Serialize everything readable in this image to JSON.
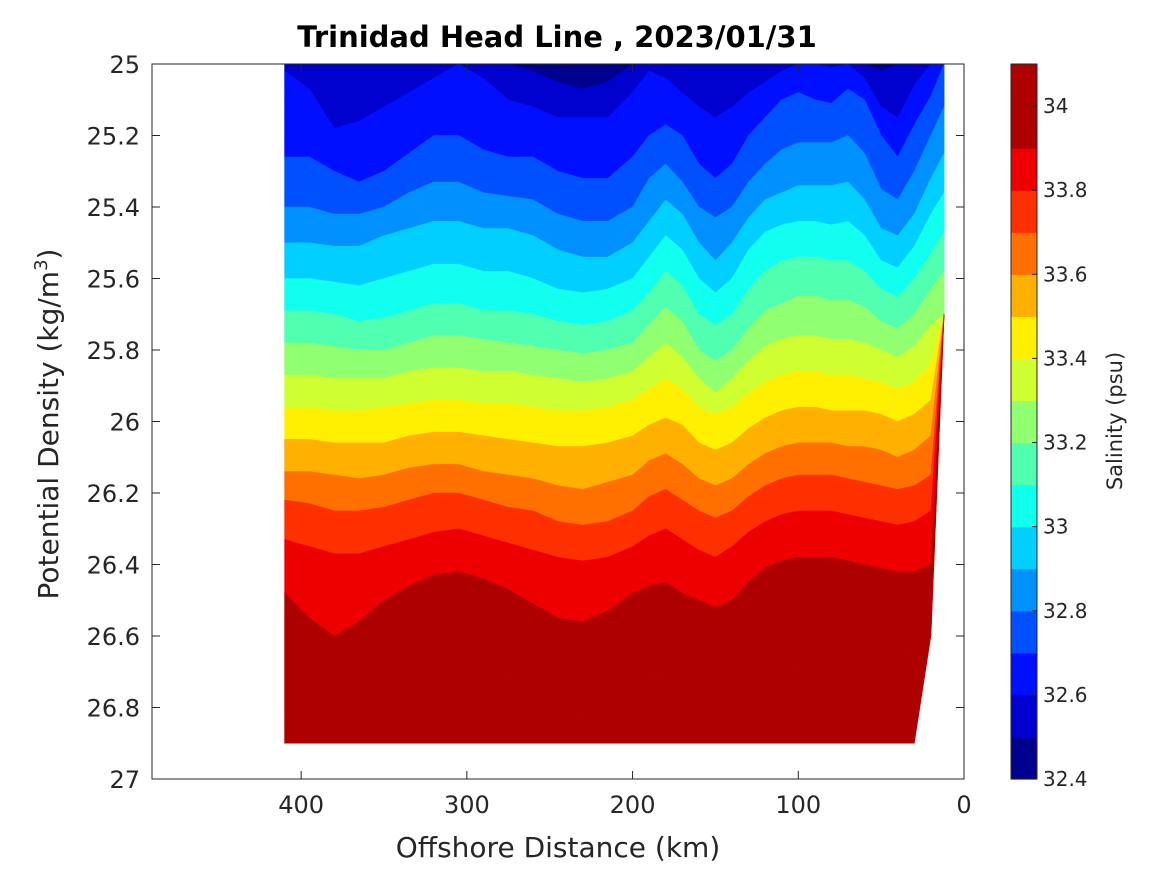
{
  "chart_data": {
    "type": "heatmap",
    "title": "Trinidad Head Line , 2023/01/31",
    "xlabel": "Offshore Distance (km)",
    "ylabel": "Potential Density (kg/m",
    "ylabel_superscript": "3",
    "ylabel_suffix": ")",
    "xlim": [
      490,
      0
    ],
    "ylim": [
      25,
      27
    ],
    "x_direction": "reversed",
    "y_direction": "reversed",
    "xticks": [
      400,
      300,
      200,
      100,
      0
    ],
    "xtick_labels": [
      "400",
      "300",
      "200",
      "100",
      "0"
    ],
    "yticks": [
      25,
      25.2,
      25.4,
      25.6,
      25.8,
      26,
      26.2,
      26.4,
      26.6,
      26.8,
      27
    ],
    "ytick_labels": [
      "25",
      "25.2",
      "25.4",
      "25.6",
      "25.8",
      "26",
      "26.2",
      "26.4",
      "26.6",
      "26.8",
      "27"
    ],
    "grid": false,
    "colorbar": {
      "label": "Salinity (psu)",
      "range": [
        32.4,
        34.1
      ],
      "ticks": [
        32.4,
        32.6,
        32.8,
        33,
        33.2,
        33.4,
        33.6,
        33.8,
        34
      ],
      "tick_labels": [
        "32.4",
        "32.6",
        "32.8",
        "33",
        "33.2",
        "33.4",
        "33.6",
        "33.8",
        "34"
      ],
      "levels": [
        32.4,
        32.5,
        32.6,
        32.7,
        32.8,
        32.9,
        33.0,
        33.1,
        33.2,
        33.3,
        33.4,
        33.5,
        33.6,
        33.7,
        33.8,
        33.9,
        34.0,
        34.1
      ],
      "colors": [
        "#00008f",
        "#0000cf",
        "#0010ff",
        "#0050ff",
        "#0090ff",
        "#00cfff",
        "#10ffef",
        "#50ffaf",
        "#90ff70",
        "#cfff30",
        "#ffef00",
        "#ffb000",
        "#ff7000",
        "#ff3000",
        "#ef0000",
        "#af0000",
        "#af0000"
      ]
    },
    "stations_km": [
      410,
      395,
      380,
      365,
      350,
      335,
      320,
      305,
      290,
      275,
      260,
      245,
      230,
      215,
      200,
      190,
      180,
      170,
      160,
      150,
      140,
      130,
      120,
      110,
      100,
      90,
      80,
      70,
      60,
      50,
      40,
      30,
      20,
      12
    ],
    "data_density_max": [
      26.9,
      26.9,
      26.9,
      26.9,
      26.9,
      26.9,
      26.9,
      26.9,
      26.9,
      26.9,
      26.9,
      26.9,
      26.9,
      26.9,
      26.9,
      26.9,
      26.9,
      26.9,
      26.9,
      26.9,
      26.9,
      26.9,
      26.9,
      26.9,
      26.9,
      26.9,
      26.9,
      26.9,
      26.9,
      26.9,
      26.9,
      26.9,
      26.6,
      25.7
    ],
    "isopycnal_density_of_salinity_levels": {
      "levels": [
        32.5,
        32.6,
        32.7,
        32.8,
        32.9,
        33.0,
        33.1,
        33.2,
        33.3,
        33.4,
        33.5,
        33.6,
        33.7,
        33.8,
        33.9,
        34.0
      ],
      "contours": [
        [
          24.95,
          24.95,
          24.96,
          24.97,
          24.96,
          24.95,
          24.95,
          24.97,
          24.98,
          25.0,
          25.02,
          25.05,
          25.07,
          25.05,
          25.0,
          24.98,
          24.97,
          24.97,
          24.98,
          24.99,
          24.98,
          24.97,
          24.96,
          24.95,
          24.95,
          24.95,
          24.95,
          24.95,
          24.96,
          25.02,
          24.98,
          24.96,
          24.96,
          24.95
        ],
        [
          25.02,
          25.07,
          25.18,
          25.16,
          25.12,
          25.08,
          25.04,
          25.0,
          25.04,
          25.1,
          25.12,
          25.15,
          25.15,
          25.15,
          25.08,
          25.02,
          25.04,
          25.08,
          25.12,
          25.15,
          25.12,
          25.08,
          25.05,
          25.02,
          25.0,
          25.0,
          25.01,
          24.99,
          25.04,
          25.12,
          25.15,
          25.06,
          24.98,
          24.97
        ],
        [
          25.26,
          25.26,
          25.3,
          25.33,
          25.3,
          25.25,
          25.2,
          25.2,
          25.24,
          25.26,
          25.26,
          25.3,
          25.32,
          25.32,
          25.26,
          25.2,
          25.17,
          25.2,
          25.28,
          25.32,
          25.28,
          25.2,
          25.15,
          25.1,
          25.08,
          25.1,
          25.11,
          25.07,
          25.1,
          25.2,
          25.26,
          25.17,
          25.09,
          25.0
        ],
        [
          25.4,
          25.4,
          25.42,
          25.42,
          25.4,
          25.36,
          25.33,
          25.33,
          25.36,
          25.37,
          25.38,
          25.42,
          25.44,
          25.44,
          25.4,
          25.32,
          25.28,
          25.33,
          25.4,
          25.43,
          25.4,
          25.33,
          25.28,
          25.24,
          25.22,
          25.22,
          25.22,
          25.2,
          25.25,
          25.35,
          25.38,
          25.3,
          25.2,
          25.12
        ],
        [
          25.5,
          25.5,
          25.51,
          25.51,
          25.48,
          25.46,
          25.44,
          25.44,
          25.46,
          25.46,
          25.48,
          25.52,
          25.54,
          25.54,
          25.5,
          25.44,
          25.38,
          25.42,
          25.5,
          25.55,
          25.5,
          25.43,
          25.38,
          25.36,
          25.34,
          25.34,
          25.34,
          25.33,
          25.38,
          25.46,
          25.48,
          25.42,
          25.32,
          25.25
        ],
        [
          25.6,
          25.6,
          25.61,
          25.62,
          25.6,
          25.58,
          25.56,
          25.56,
          25.58,
          25.58,
          25.6,
          25.63,
          25.64,
          25.63,
          25.6,
          25.54,
          25.48,
          25.52,
          25.6,
          25.64,
          25.6,
          25.52,
          25.47,
          25.45,
          25.44,
          25.44,
          25.45,
          25.44,
          25.48,
          25.55,
          25.57,
          25.51,
          25.42,
          25.36
        ],
        [
          25.69,
          25.69,
          25.7,
          25.72,
          25.71,
          25.69,
          25.67,
          25.67,
          25.69,
          25.69,
          25.7,
          25.72,
          25.73,
          25.72,
          25.69,
          25.64,
          25.58,
          25.62,
          25.7,
          25.73,
          25.7,
          25.63,
          25.58,
          25.55,
          25.54,
          25.54,
          25.55,
          25.55,
          25.58,
          25.63,
          25.65,
          25.6,
          25.53,
          25.47
        ],
        [
          25.78,
          25.78,
          25.79,
          25.8,
          25.8,
          25.78,
          25.76,
          25.76,
          25.77,
          25.78,
          25.79,
          25.8,
          25.81,
          25.8,
          25.78,
          25.73,
          25.68,
          25.72,
          25.8,
          25.83,
          25.8,
          25.74,
          25.69,
          25.67,
          25.65,
          25.65,
          25.66,
          25.66,
          25.68,
          25.72,
          25.74,
          25.7,
          25.63,
          25.58
        ],
        [
          25.87,
          25.87,
          25.88,
          25.88,
          25.88,
          25.86,
          25.85,
          25.85,
          25.86,
          25.86,
          25.87,
          25.88,
          25.89,
          25.88,
          25.86,
          25.82,
          25.78,
          25.82,
          25.88,
          25.92,
          25.88,
          25.83,
          25.79,
          25.77,
          25.76,
          25.76,
          25.77,
          25.77,
          25.78,
          25.8,
          25.82,
          25.79,
          25.73,
          25.7
        ],
        [
          25.96,
          25.96,
          25.97,
          25.97,
          25.96,
          25.95,
          25.94,
          25.94,
          25.95,
          25.95,
          25.96,
          25.97,
          25.97,
          25.96,
          25.94,
          25.91,
          25.88,
          25.91,
          25.96,
          25.98,
          25.96,
          25.92,
          25.89,
          25.87,
          25.86,
          25.86,
          25.87,
          25.87,
          25.88,
          25.89,
          25.91,
          25.89,
          25.84,
          25.82
        ],
        [
          26.05,
          26.05,
          26.06,
          26.06,
          26.06,
          26.04,
          26.03,
          26.03,
          26.04,
          26.05,
          26.06,
          26.07,
          26.07,
          26.06,
          26.04,
          26.01,
          25.99,
          26.01,
          26.06,
          26.08,
          26.06,
          26.02,
          25.99,
          25.97,
          25.96,
          25.96,
          25.97,
          25.97,
          25.97,
          25.98,
          26.0,
          25.98,
          25.94,
          25.92
        ],
        [
          26.14,
          26.14,
          26.15,
          26.16,
          26.15,
          26.13,
          26.12,
          26.12,
          26.14,
          26.15,
          26.16,
          26.18,
          26.19,
          26.17,
          26.15,
          26.11,
          26.09,
          26.12,
          26.16,
          26.18,
          26.16,
          26.12,
          26.09,
          26.07,
          26.06,
          26.06,
          26.06,
          26.07,
          26.07,
          26.08,
          26.1,
          26.08,
          26.04,
          26.02
        ],
        [
          26.22,
          26.23,
          26.25,
          26.25,
          26.24,
          26.22,
          26.2,
          26.2,
          26.22,
          26.24,
          26.25,
          26.28,
          26.29,
          26.28,
          26.25,
          26.21,
          26.19,
          26.22,
          26.25,
          26.27,
          26.25,
          26.21,
          26.18,
          26.16,
          26.15,
          26.15,
          26.15,
          26.16,
          26.17,
          26.18,
          26.19,
          26.18,
          26.15,
          26.12
        ],
        [
          26.33,
          26.35,
          26.37,
          26.37,
          26.35,
          26.33,
          26.31,
          26.3,
          26.32,
          26.34,
          26.36,
          26.38,
          26.39,
          26.38,
          26.35,
          26.32,
          26.3,
          26.33,
          26.36,
          26.38,
          26.35,
          26.31,
          26.28,
          26.26,
          26.25,
          26.25,
          26.25,
          26.26,
          26.27,
          26.28,
          26.29,
          26.28,
          26.25,
          26.22
        ],
        [
          26.48,
          26.55,
          26.6,
          26.56,
          26.5,
          26.46,
          26.43,
          26.42,
          26.44,
          26.47,
          26.51,
          26.55,
          26.56,
          26.53,
          26.48,
          26.46,
          26.45,
          26.48,
          26.5,
          26.52,
          26.5,
          26.45,
          26.41,
          26.39,
          26.38,
          26.38,
          26.38,
          26.39,
          26.4,
          26.41,
          26.42,
          26.42,
          26.4,
          26.38
        ],
        [
          26.82,
          26.84,
          26.85,
          26.84,
          26.8,
          26.76,
          26.78,
          26.8,
          26.74,
          26.72,
          26.76,
          26.8,
          26.82,
          26.8,
          26.75,
          26.72,
          26.72,
          26.74,
          26.78,
          26.8,
          26.76,
          26.72,
          26.69,
          26.69,
          26.7,
          26.68,
          26.66,
          26.66,
          26.66,
          26.66,
          26.66,
          26.65,
          26.62,
          26.6
        ]
      ]
    }
  }
}
